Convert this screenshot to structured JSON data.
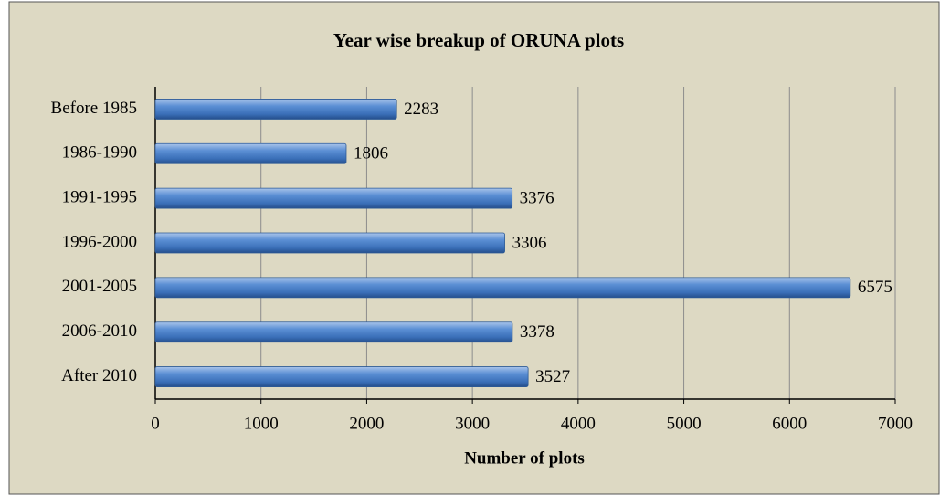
{
  "chart_data": {
    "type": "bar",
    "orientation": "horizontal",
    "title": "Year wise breakup of ORUNA plots",
    "x_label": "Number of plots",
    "categories": [
      "Before 1985",
      "1986-1990",
      "1991-1995",
      "1996-2000",
      "2001-2005",
      "2006-2010",
      "After 2010"
    ],
    "values": [
      2283,
      1806,
      3376,
      3306,
      6575,
      3378,
      3527
    ],
    "color": "#4f81bd",
    "xlim": [
      0,
      7000
    ],
    "xticks": [
      0,
      1000,
      2000,
      3000,
      4000,
      5000,
      6000,
      7000
    ],
    "grid": true
  }
}
